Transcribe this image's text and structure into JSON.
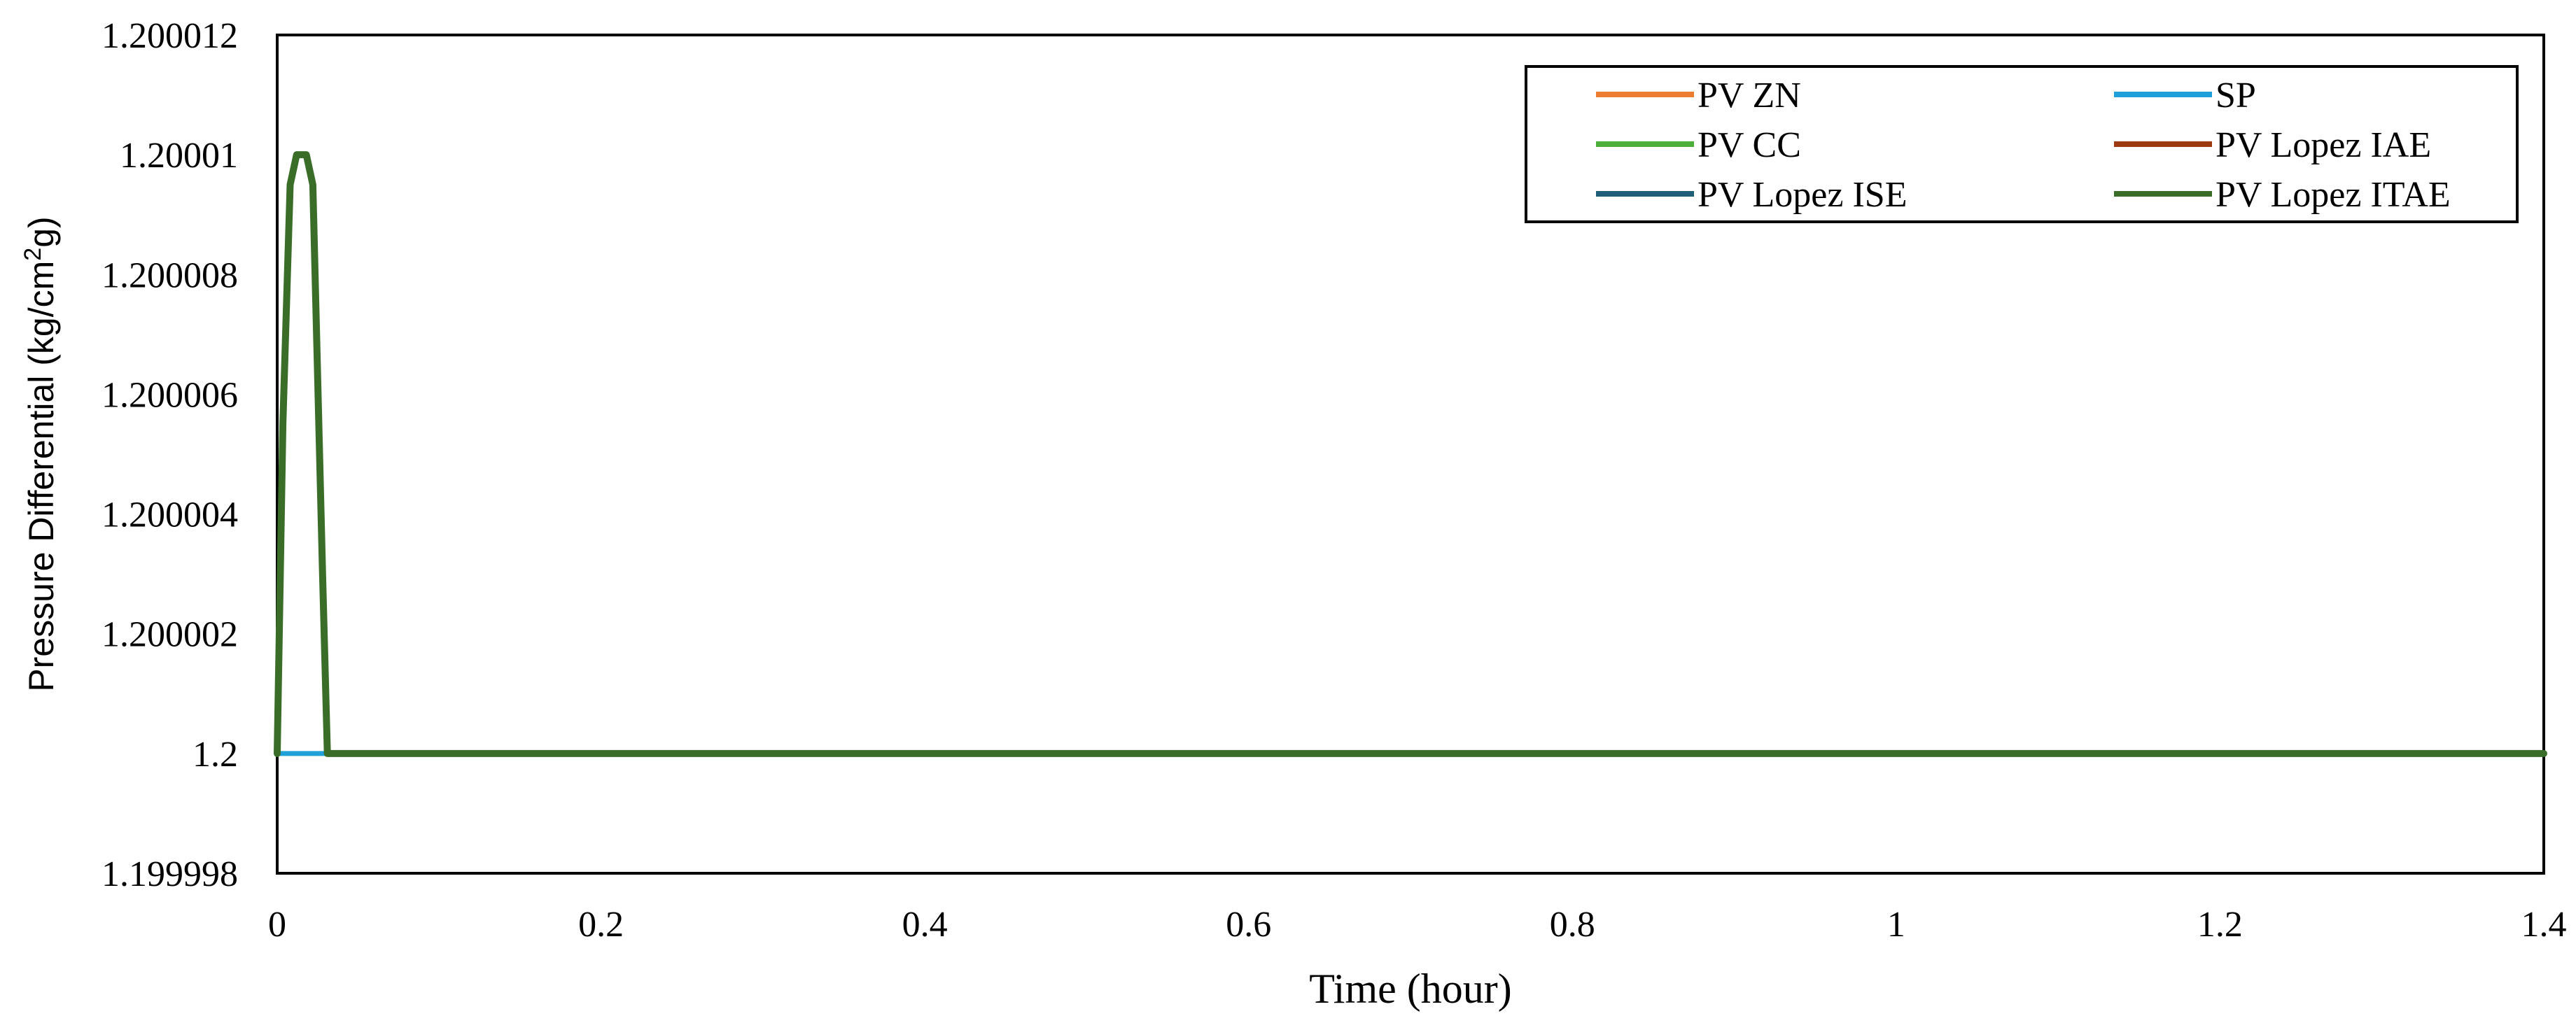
{
  "chart_data": {
    "type": "line",
    "title": "",
    "xlabel": "Time (hour)",
    "ylabel": {
      "prefix": "Pressure Differential (kg/cm",
      "sup": "2",
      "suffix": "g)"
    },
    "xlim": [
      0,
      1.4
    ],
    "ylim": [
      1.199998,
      1.200012
    ],
    "xticks": [
      "0",
      "0.2",
      "0.4",
      "0.6",
      "0.8",
      "1",
      "1.2",
      "1.4"
    ],
    "xtick_values": [
      0,
      0.2,
      0.4,
      0.6,
      0.8,
      1.0,
      1.2,
      1.4
    ],
    "yticks": [
      "1.199998",
      "1.2",
      "1.200002",
      "1.200004",
      "1.200006",
      "1.200008",
      "1.20001",
      "1.200012"
    ],
    "ytick_values": [
      1.199998,
      1.2,
      1.200002,
      1.200004,
      1.200006,
      1.200008,
      1.20001,
      1.200012
    ],
    "grid": false,
    "legend_position": "top-right",
    "series": [
      {
        "name": "PV ZN",
        "color": "#ED7D31",
        "x": [
          0,
          0.0035,
          0.008,
          0.012,
          0.018,
          0.022,
          0.028,
          0.031,
          0.034,
          0.05,
          1.4
        ],
        "y": [
          1.2,
          1.2000055,
          1.2000095,
          1.20001,
          1.20001,
          1.2000095,
          1.200003,
          1.2,
          1.2,
          1.2,
          1.2
        ]
      },
      {
        "name": "SP",
        "color": "#1FA0D8",
        "x": [
          0,
          1.4
        ],
        "y": [
          1.2,
          1.2
        ]
      },
      {
        "name": "PV CC",
        "color": "#4CAF3A",
        "x": [
          0,
          0.0035,
          0.008,
          0.012,
          0.018,
          0.022,
          0.028,
          0.031,
          0.034,
          0.05,
          1.4
        ],
        "y": [
          1.2,
          1.2000055,
          1.2000095,
          1.20001,
          1.20001,
          1.2000095,
          1.200003,
          1.2,
          1.2,
          1.2,
          1.2
        ]
      },
      {
        "name": "PV Lopez IAE",
        "color": "#9E3A10",
        "x": [
          0,
          0.0035,
          0.008,
          0.012,
          0.018,
          0.022,
          0.028,
          0.031,
          0.034,
          0.05,
          1.4
        ],
        "y": [
          1.2,
          1.2000055,
          1.2000095,
          1.20001,
          1.20001,
          1.2000095,
          1.200003,
          1.2,
          1.2,
          1.2,
          1.2
        ]
      },
      {
        "name": "PV Lopez ISE",
        "color": "#1F5F7A",
        "x": [
          0,
          0.0035,
          0.008,
          0.012,
          0.018,
          0.022,
          0.028,
          0.031,
          0.034,
          0.05,
          1.4
        ],
        "y": [
          1.2,
          1.2000055,
          1.2000095,
          1.20001,
          1.20001,
          1.2000095,
          1.200003,
          1.2,
          1.2,
          1.2,
          1.2
        ]
      },
      {
        "name": "PV Lopez ITAE",
        "color": "#3A6E28",
        "x": [
          0,
          0.0035,
          0.008,
          0.012,
          0.018,
          0.022,
          0.028,
          0.031,
          0.034,
          0.05,
          1.4
        ],
        "y": [
          1.2,
          1.2000055,
          1.2000095,
          1.20001,
          1.20001,
          1.2000095,
          1.200003,
          1.2,
          1.2,
          1.2,
          1.2
        ]
      }
    ]
  }
}
